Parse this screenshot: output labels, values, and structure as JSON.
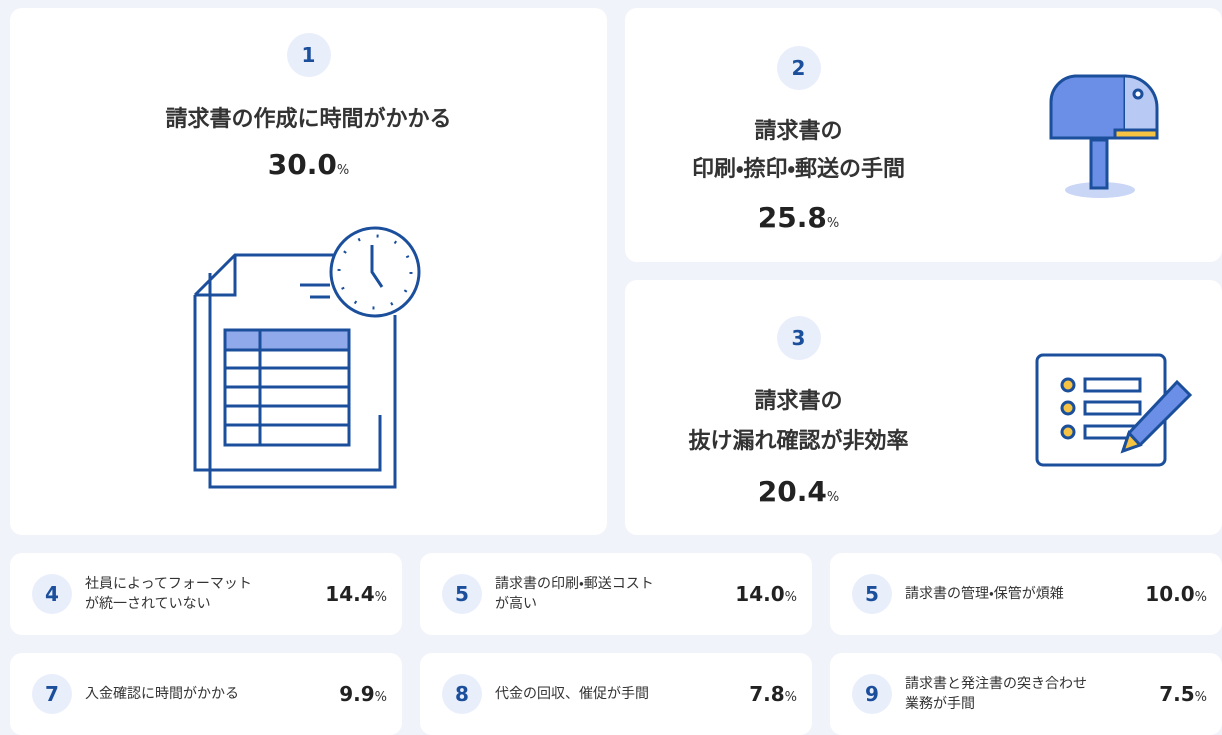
{
  "top_items": [
    {
      "rank": "1",
      "lines": [
        "請求書の作成に時間がかかる"
      ],
      "value": "30.0",
      "unit": "%"
    },
    {
      "rank": "2",
      "lines": [
        "請求書の",
        "印刷・捺印・郵送の手間"
      ],
      "value": "25.8",
      "unit": "%"
    },
    {
      "rank": "3",
      "lines": [
        "請求書の",
        "抜け漏れ確認が非効率"
      ],
      "value": "20.4",
      "unit": "%"
    }
  ],
  "other_items": [
    {
      "rank": "4",
      "lines": [
        "社員によってフォーマット",
        "が統一されていない"
      ],
      "value": "14.4",
      "unit": "%"
    },
    {
      "rank": "5",
      "lines": [
        "請求書の印刷・郵送コスト",
        "が高い"
      ],
      "value": "14.0",
      "unit": "%"
    },
    {
      "rank": "5",
      "lines": [
        "請求書の管理・保管が煩雑"
      ],
      "value": "10.0",
      "unit": "%"
    },
    {
      "rank": "7",
      "lines": [
        "入金確認に時間がかかる"
      ],
      "value": "9.9",
      "unit": "%"
    },
    {
      "rank": "8",
      "lines": [
        "代金の回収、催促が手間"
      ],
      "value": "7.8",
      "unit": "%"
    },
    {
      "rank": "9",
      "lines": [
        "請求書と発注書の突き合わせ",
        "業務が手間"
      ],
      "value": "7.5",
      "unit": "%"
    }
  ]
}
